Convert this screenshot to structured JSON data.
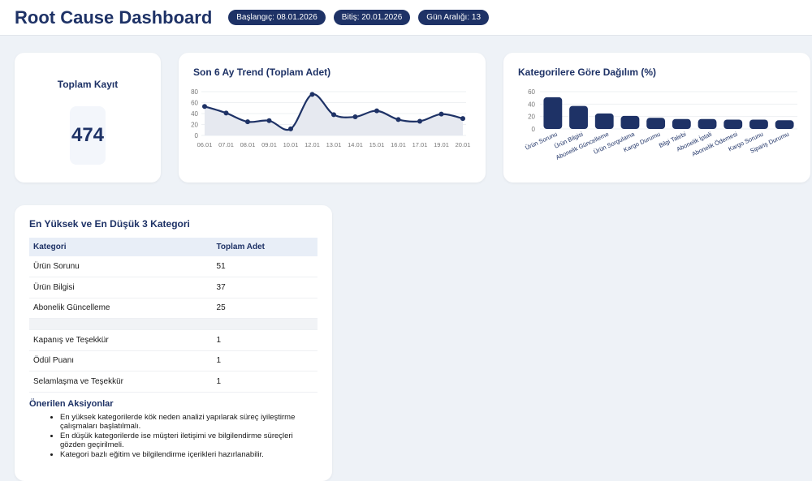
{
  "header": {
    "title": "Root Cause Dashboard",
    "pills": [
      "Başlangıç: 08.01.2026",
      "Bitiş: 20.01.2026",
      "Gün Aralığı: 13"
    ]
  },
  "kpi": {
    "label": "Toplam Kayıt",
    "value": "474"
  },
  "chart_data": [
    {
      "type": "line",
      "title": "Son 6 Ay Trend (Toplam Adet)",
      "x": [
        "06.01",
        "07.01",
        "08.01",
        "09.01",
        "10.01",
        "12.01",
        "13.01",
        "14.01",
        "15.01",
        "16.01",
        "17.01",
        "19.01",
        "20.01"
      ],
      "values": [
        53,
        41,
        25,
        27,
        12,
        75,
        38,
        34,
        45,
        29,
        26,
        39,
        31
      ],
      "ylim": [
        0,
        80
      ],
      "yticks": [
        0,
        20,
        40,
        60,
        80
      ],
      "color": "#1e3266"
    },
    {
      "type": "bar",
      "title": "Kategorilere Göre Dağılım (%)",
      "categories": [
        "Ürün Sorunu",
        "Ürün Bilgisi",
        "Abonelik Güncelleme",
        "Ürün Sorgulama",
        "Kargo Durumu",
        "Bilgi Talebi",
        "Abonelik İptali",
        "Abonelik Ödemesi",
        "Kargo Sorunu",
        "Sipariş Durumu"
      ],
      "values": [
        51,
        37,
        25,
        21,
        18,
        16,
        16,
        15,
        15,
        14
      ],
      "ylim": [
        0,
        60
      ],
      "yticks": [
        0,
        20,
        40,
        60
      ],
      "color": "#1e3266"
    }
  ],
  "table": {
    "title": "En Yüksek ve En Düşük 3 Kategori",
    "headers": [
      "Kategori",
      "Toplam Adet"
    ],
    "top": [
      [
        "Ürün Sorunu",
        "51"
      ],
      [
        "Ürün Bilgisi",
        "37"
      ],
      [
        "Abonelik Güncelleme",
        "25"
      ]
    ],
    "bottom": [
      [
        "Kapanış ve Teşekkür",
        "1"
      ],
      [
        "Ödül Puanı",
        "1"
      ],
      [
        "Selamlaşma ve Teşekkür",
        "1"
      ]
    ]
  },
  "actions": {
    "title": "Önerilen Aksiyonlar",
    "items": [
      "En yüksek kategorilerde kök neden analizi yapılarak süreç iyileştirme çalışmaları başlatılmalı.",
      "En düşük kategorilerde ise müşteri iletişimi ve bilgilendirme süreçleri gözden geçirilmeli.",
      "Kategori bazlı eğitim ve bilgilendirme içerikleri hazırlanabilir."
    ]
  }
}
